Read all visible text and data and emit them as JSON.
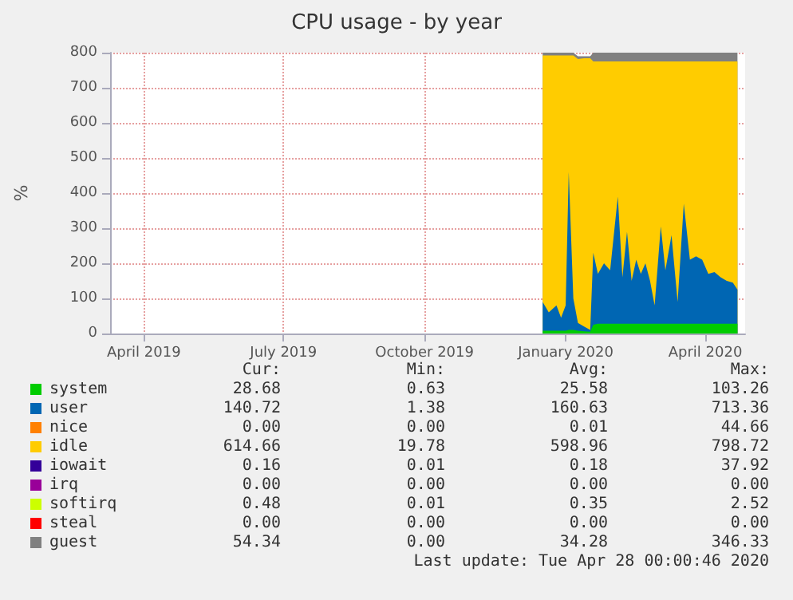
{
  "chart_data": {
    "type": "area",
    "title": "CPU usage - by year",
    "ylabel": "%",
    "stacked": true,
    "grid": true,
    "legend": "bottom",
    "x": [
      "2019-12-17",
      "2019-12-21",
      "2019-12-26",
      "2019-12-29",
      "2020-01-01",
      "2020-01-03",
      "2020-01-06",
      "2020-01-09",
      "2020-01-13",
      "2020-01-17",
      "2020-01-19",
      "2020-01-22",
      "2020-01-26",
      "2020-01-30",
      "2020-02-04",
      "2020-02-07",
      "2020-02-10",
      "2020-02-13",
      "2020-02-16",
      "2020-02-19",
      "2020-02-22",
      "2020-02-25",
      "2020-02-28",
      "2020-03-03",
      "2020-03-06",
      "2020-03-10",
      "2020-03-14",
      "2020-03-18",
      "2020-03-22",
      "2020-03-26",
      "2020-03-30",
      "2020-04-03",
      "2020-04-07",
      "2020-04-11",
      "2020-04-15",
      "2020-04-19",
      "2020-04-22"
    ],
    "xlim": [
      "2019-03-10",
      "2020-04-27"
    ],
    "xticks": [
      {
        "value": "2019-04-01",
        "label": "April 2019"
      },
      {
        "value": "2019-07-01",
        "label": "July 2019"
      },
      {
        "value": "2019-10-01",
        "label": "October 2019"
      },
      {
        "value": "2020-01-01",
        "label": "January 2020"
      },
      {
        "value": "2020-04-01",
        "label": "April 2020"
      }
    ],
    "ylim": [
      0,
      800
    ],
    "yticks": [
      0,
      100,
      200,
      300,
      400,
      500,
      600,
      700,
      800
    ],
    "series": [
      {
        "name": "system",
        "color": "#00cc00",
        "values": [
          8,
          8,
          8,
          8,
          8,
          10,
          10,
          8,
          6,
          5,
          25,
          28,
          28,
          28,
          28,
          28,
          28,
          28,
          28,
          28,
          28,
          28,
          28,
          28,
          28,
          28,
          28,
          28,
          28,
          28,
          28,
          28,
          28,
          28,
          28,
          28,
          28
        ]
      },
      {
        "name": "user",
        "color": "#0066b3",
        "values": [
          82,
          52,
          72,
          37,
          72,
          450,
          90,
          22,
          14,
          5,
          205,
          142,
          172,
          152,
          362,
          132,
          262,
          122,
          182,
          142,
          172,
          122,
          52,
          277,
          152,
          252,
          62,
          342,
          182,
          192,
          182,
          142,
          147,
          132,
          122,
          117,
          97
        ]
      },
      {
        "name": "nice",
        "color": "#ff8000",
        "values": [
          null,
          null,
          null,
          null,
          null,
          null,
          null,
          null,
          null,
          null,
          null,
          null,
          null,
          null,
          null,
          null,
          null,
          null,
          null,
          null,
          null,
          null,
          null,
          null,
          null,
          null,
          null,
          null,
          null,
          null,
          null,
          null,
          null,
          null,
          null,
          null,
          null
        ]
      },
      {
        "name": "idle",
        "color": "#ffcc00",
        "values": [
          702,
          732,
          712,
          747,
          712,
          332,
          692,
          752,
          764,
          774,
          545,
          605,
          575,
          595,
          385,
          615,
          485,
          625,
          565,
          605,
          575,
          625,
          695,
          470,
          595,
          495,
          685,
          405,
          565,
          555,
          565,
          605,
          600,
          615,
          625,
          630,
          650
        ]
      },
      {
        "name": "iowait",
        "color": "#330099",
        "values": [
          null,
          null,
          null,
          null,
          null,
          null,
          null,
          null,
          null,
          null,
          null,
          null,
          null,
          null,
          null,
          null,
          null,
          null,
          null,
          null,
          null,
          null,
          null,
          null,
          null,
          null,
          null,
          null,
          null,
          null,
          null,
          null,
          null,
          null,
          null,
          null,
          null
        ]
      },
      {
        "name": "irq",
        "color": "#990099",
        "values": [
          null,
          null,
          null,
          null,
          null,
          null,
          null,
          null,
          null,
          null,
          null,
          null,
          null,
          null,
          null,
          null,
          null,
          null,
          null,
          null,
          null,
          null,
          null,
          null,
          null,
          null,
          null,
          null,
          null,
          null,
          null,
          null,
          null,
          null,
          null,
          null,
          null
        ]
      },
      {
        "name": "softirq",
        "color": "#ccff00",
        "values": [
          null,
          null,
          null,
          null,
          null,
          null,
          null,
          null,
          null,
          null,
          null,
          null,
          null,
          null,
          null,
          null,
          null,
          null,
          null,
          null,
          null,
          null,
          null,
          null,
          null,
          null,
          null,
          null,
          null,
          null,
          null,
          null,
          null,
          null,
          null,
          null,
          null
        ]
      },
      {
        "name": "steal",
        "color": "#ff0000",
        "values": [
          null,
          null,
          null,
          null,
          null,
          null,
          null,
          null,
          null,
          null,
          null,
          null,
          null,
          null,
          null,
          null,
          null,
          null,
          null,
          null,
          null,
          null,
          null,
          null,
          null,
          null,
          null,
          null,
          null,
          null,
          null,
          null,
          null,
          null,
          null,
          null,
          null
        ]
      },
      {
        "name": "guest",
        "color": "#808080",
        "values": [
          8,
          8,
          8,
          8,
          8,
          8,
          8,
          8,
          6,
          6,
          25,
          25,
          25,
          25,
          25,
          25,
          25,
          25,
          25,
          25,
          25,
          25,
          25,
          25,
          25,
          25,
          25,
          25,
          25,
          25,
          25,
          25,
          25,
          25,
          25,
          25,
          25
        ]
      }
    ],
    "annotations": [
      "Cur:",
      "Min:",
      "Avg:",
      "Max:",
      "28.68",
      "0.63",
      "25.58",
      "103.26",
      "140.72",
      "1.38",
      "160.63",
      "713.36",
      "0.00",
      "0.00",
      "0.01",
      "44.66",
      "614.66",
      "19.78",
      "598.96",
      "798.72",
      "0.16",
      "0.01",
      "0.18",
      "37.92",
      "0.00",
      "0.00",
      "0.00",
      "0.00",
      "0.48",
      "0.01",
      "0.35",
      "2.52",
      "0.00",
      "0.00",
      "0.00",
      "0.00",
      "54.34",
      "0.00",
      "34.28",
      "346.33",
      "Last update: Tue Apr 28 00:00:46 2020"
    ]
  }
}
